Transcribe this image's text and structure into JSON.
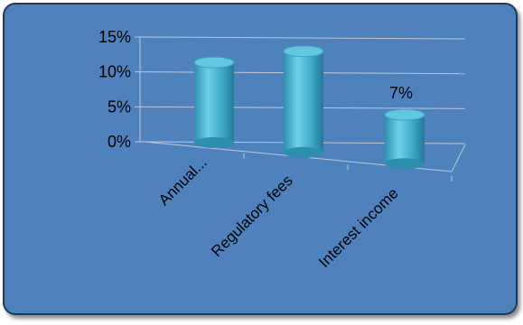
{
  "chart_data": {
    "type": "bar",
    "style": "3d-cylinder",
    "categories": [
      "Annual...",
      "Regulatory fees",
      "Interest income"
    ],
    "values": [
      11.5,
      14.5,
      7
    ],
    "data_labels": [
      "",
      "",
      "7%"
    ],
    "ylim": [
      0,
      15
    ],
    "yticks": [
      0,
      5,
      10,
      15
    ],
    "ytick_labels": [
      "0%",
      "5%",
      "10%",
      "15%"
    ],
    "title": "",
    "xlabel": "",
    "ylabel": "",
    "grid": true,
    "legend": false,
    "colors": {
      "background": "#4f81bd",
      "cylinder": "#4bb3cf",
      "cylinder_top": "#63c7e0",
      "axis": "#c0c8d8"
    }
  }
}
